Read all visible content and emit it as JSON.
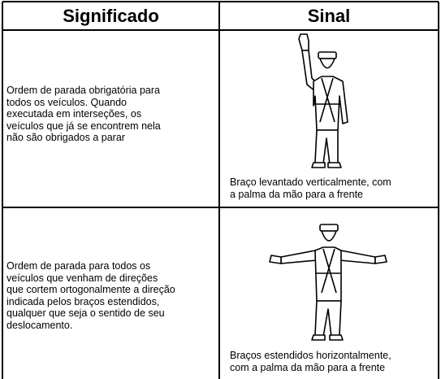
{
  "table": {
    "header": [
      "Significado",
      "Sinal"
    ],
    "rows": [
      {
        "significado": [
          "Ordem de parada obrigatória para",
          "todos os veículos. Quando",
          "executada em interseções, os",
          "veículos que já se encontrem nela",
          "não são obrigados a parar"
        ],
        "sinal": [
          "Braço levantado verticalmente, com",
          "a palma da mão para a frente"
        ]
      },
      {
        "significado": [
          "Ordem de parada para todos os",
          "veículos que venham de direções",
          "que cortem ortogonalmente a direção",
          "indicada pelos braços estendidos,",
          "qualquer que seja o sentido de seu",
          "deslocamento."
        ],
        "sinal": [
          "Braços estendidos horizontalmente,",
          "com a palma da mão para a frente"
        ]
      }
    ]
  }
}
